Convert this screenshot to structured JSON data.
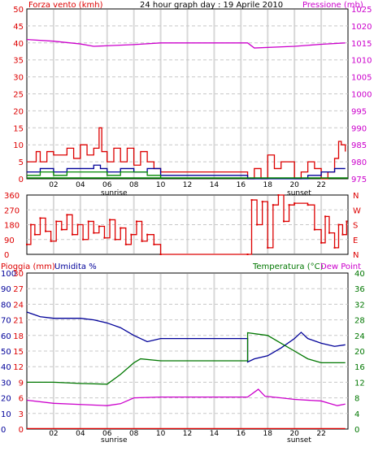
{
  "panel1": {
    "title": "24 hour graph day : 19 Aprile 2010",
    "left_label": "Forza vento (kmh)",
    "right_label": "Pressione (mb)",
    "left_ticks": [
      "50",
      "45",
      "40",
      "35",
      "30",
      "25",
      "20",
      "15",
      "10",
      "5",
      "0"
    ],
    "right_ticks": [
      "1025",
      "1020",
      "1015",
      "1010",
      "1005",
      "1000",
      "995",
      "990",
      "985",
      "980",
      "975"
    ]
  },
  "panel2": {
    "left_ticks": [
      "360",
      "270",
      "180",
      "90",
      "0"
    ],
    "right_ticks": [
      "N",
      "W",
      "S",
      "E",
      "N"
    ]
  },
  "panel3": {
    "label_rain": "Pioggia (mm)",
    "label_hum": "Umidita %",
    "label_temp": "Temperatura (°C)",
    "label_dew": "Dew Point",
    "hum_ticks": [
      "100",
      "90",
      "80",
      "70",
      "60",
      "50",
      "40",
      "30",
      "20",
      "10",
      "0"
    ],
    "rain_ticks": [
      "30",
      "27",
      "24",
      "21",
      "18",
      "15",
      "12",
      "9",
      "6",
      "3",
      "0"
    ],
    "temp_ticks": [
      "40",
      "36",
      "32",
      "28",
      "24",
      "20",
      "16",
      "12",
      "8",
      "4",
      "0"
    ]
  },
  "x_labels": [
    "02",
    "04",
    "06",
    "08",
    "10",
    "12",
    "14",
    "16",
    "18",
    "20",
    "22"
  ],
  "sunrise_label": "sunrise",
  "sunset_label": "sunset",
  "colors": {
    "wind": "#dd0000",
    "gust_blue": "#000099",
    "gust_green": "#008800",
    "pressure": "#cc00cc",
    "humidity": "#000099",
    "temperature": "#007700",
    "dewpoint": "#cc00cc",
    "rain": "#dd0000"
  },
  "chart_data": [
    {
      "type": "line",
      "title": "24 hour graph day : 19 Aprile 2010",
      "x_unit": "hour",
      "series": [
        {
          "name": "Pressione (mb)",
          "axis": "right",
          "ylim": [
            975,
            1025
          ],
          "x": [
            0,
            2,
            4,
            5,
            8,
            10,
            16.5,
            17,
            20,
            22,
            23.8
          ],
          "values": [
            1016,
            1015.5,
            1014.7,
            1014,
            1014.5,
            1015,
            1015,
            1013.5,
            1014,
            1014.6,
            1015
          ]
        },
        {
          "name": "Forza vento (kmh)",
          "axis": "left",
          "ylim": [
            0,
            50
          ],
          "x": [
            0,
            0.7,
            1,
            1.5,
            2,
            3,
            3.5,
            4,
            4.5,
            5,
            5.4,
            5.6,
            6,
            6.5,
            7,
            7.5,
            8,
            8.5,
            9,
            9.5,
            10,
            16.5,
            17,
            17.5,
            18,
            18.5,
            19,
            20,
            20.5,
            21,
            21.5,
            22,
            22.5,
            23,
            23.3,
            23.5,
            23.8
          ],
          "values": [
            5,
            8,
            5,
            8,
            7,
            9,
            6,
            10,
            7,
            9,
            15,
            8,
            5,
            9,
            5,
            9,
            4,
            8,
            5,
            3,
            2,
            0,
            3,
            0,
            7,
            3,
            5,
            0,
            2,
            5,
            3,
            0,
            2,
            6,
            11,
            10,
            8
          ]
        },
        {
          "name": "",
          "axis": "left",
          "ylim": [
            0,
            50
          ],
          "x": [
            0,
            1,
            2,
            3,
            4,
            5,
            5.5,
            6,
            7,
            8,
            9,
            10,
            16.5,
            20,
            21,
            22,
            23,
            23.8
          ],
          "values": [
            2,
            3,
            2,
            3,
            3,
            4,
            3,
            2,
            3,
            2,
            3,
            1,
            0,
            0,
            1,
            2,
            3,
            3
          ]
        },
        {
          "name": "",
          "axis": "left",
          "ylim": [
            0,
            50
          ],
          "x": [
            0,
            1,
            2,
            3,
            4,
            5,
            6,
            7,
            8,
            9,
            10
          ],
          "values": [
            1,
            2,
            1,
            2,
            2,
            2,
            1,
            2,
            2,
            1,
            0
          ]
        }
      ]
    },
    {
      "type": "line",
      "ylabel": "",
      "ylim": [
        0,
        360
      ],
      "x_unit": "hour",
      "series": [
        {
          "name": "",
          "x": [
            0,
            0.3,
            0.6,
            1,
            1.4,
            1.8,
            2.2,
            2.6,
            3,
            3.4,
            3.8,
            4.2,
            4.6,
            5,
            5.4,
            5.8,
            6.2,
            6.6,
            7,
            7.4,
            7.8,
            8.2,
            8.6,
            9,
            9.5,
            10,
            16.5,
            16.8,
            17.2,
            17.6,
            18,
            18.4,
            18.8,
            19.2,
            19.6,
            20,
            21,
            21.5,
            22,
            22.3,
            22.6,
            23,
            23.3,
            23.6,
            23.9
          ],
          "values": [
            60,
            180,
            120,
            220,
            140,
            80,
            200,
            150,
            240,
            120,
            180,
            90,
            200,
            130,
            170,
            100,
            210,
            90,
            160,
            60,
            120,
            200,
            80,
            120,
            60,
            0,
            0,
            330,
            180,
            320,
            40,
            300,
            360,
            200,
            300,
            310,
            300,
            150,
            70,
            230,
            130,
            40,
            180,
            120,
            200
          ]
        }
      ]
    },
    {
      "type": "line",
      "x_unit": "hour",
      "series": [
        {
          "name": "Umidita %",
          "axis": "hum",
          "ylim": [
            0,
            100
          ],
          "x": [
            0,
            1,
            2,
            3,
            4,
            5,
            6,
            7,
            8,
            9,
            10,
            16.5,
            16.5,
            17,
            18,
            19,
            20,
            20.5,
            21,
            22,
            23,
            23.8
          ],
          "values": [
            75,
            72,
            71,
            71,
            71,
            70,
            68,
            65,
            60,
            56,
            58,
            58,
            43,
            45,
            47,
            52,
            58,
            62,
            58,
            55,
            53,
            54
          ]
        },
        {
          "name": "Temperatura (°C)",
          "axis": "temp",
          "ylim": [
            0,
            40
          ],
          "x": [
            0,
            2,
            4,
            6,
            7,
            8,
            8.5,
            10,
            16.5,
            16.5,
            18,
            19,
            20,
            21,
            22,
            23.8
          ],
          "values": [
            12,
            12,
            11.7,
            11.5,
            14,
            17,
            18,
            17.5,
            17.5,
            24.7,
            24,
            22,
            20,
            18,
            17,
            17
          ]
        },
        {
          "name": "Dew Point",
          "axis": "temp",
          "ylim": [
            0,
            40
          ],
          "x": [
            0,
            2,
            4,
            6,
            7,
            8,
            10,
            16.5,
            17.3,
            17.8,
            19,
            20,
            22,
            23.2,
            23.8
          ],
          "values": [
            7.4,
            6.6,
            6.3,
            6,
            6.5,
            8,
            8.2,
            8.2,
            10.2,
            8.4,
            8,
            7.6,
            7.2,
            6,
            6.4
          ]
        },
        {
          "name": "Pioggia (mm)",
          "axis": "rain",
          "ylim": [
            0,
            30
          ],
          "x": [
            0,
            23.8
          ],
          "values": [
            0,
            0
          ]
        }
      ]
    }
  ]
}
